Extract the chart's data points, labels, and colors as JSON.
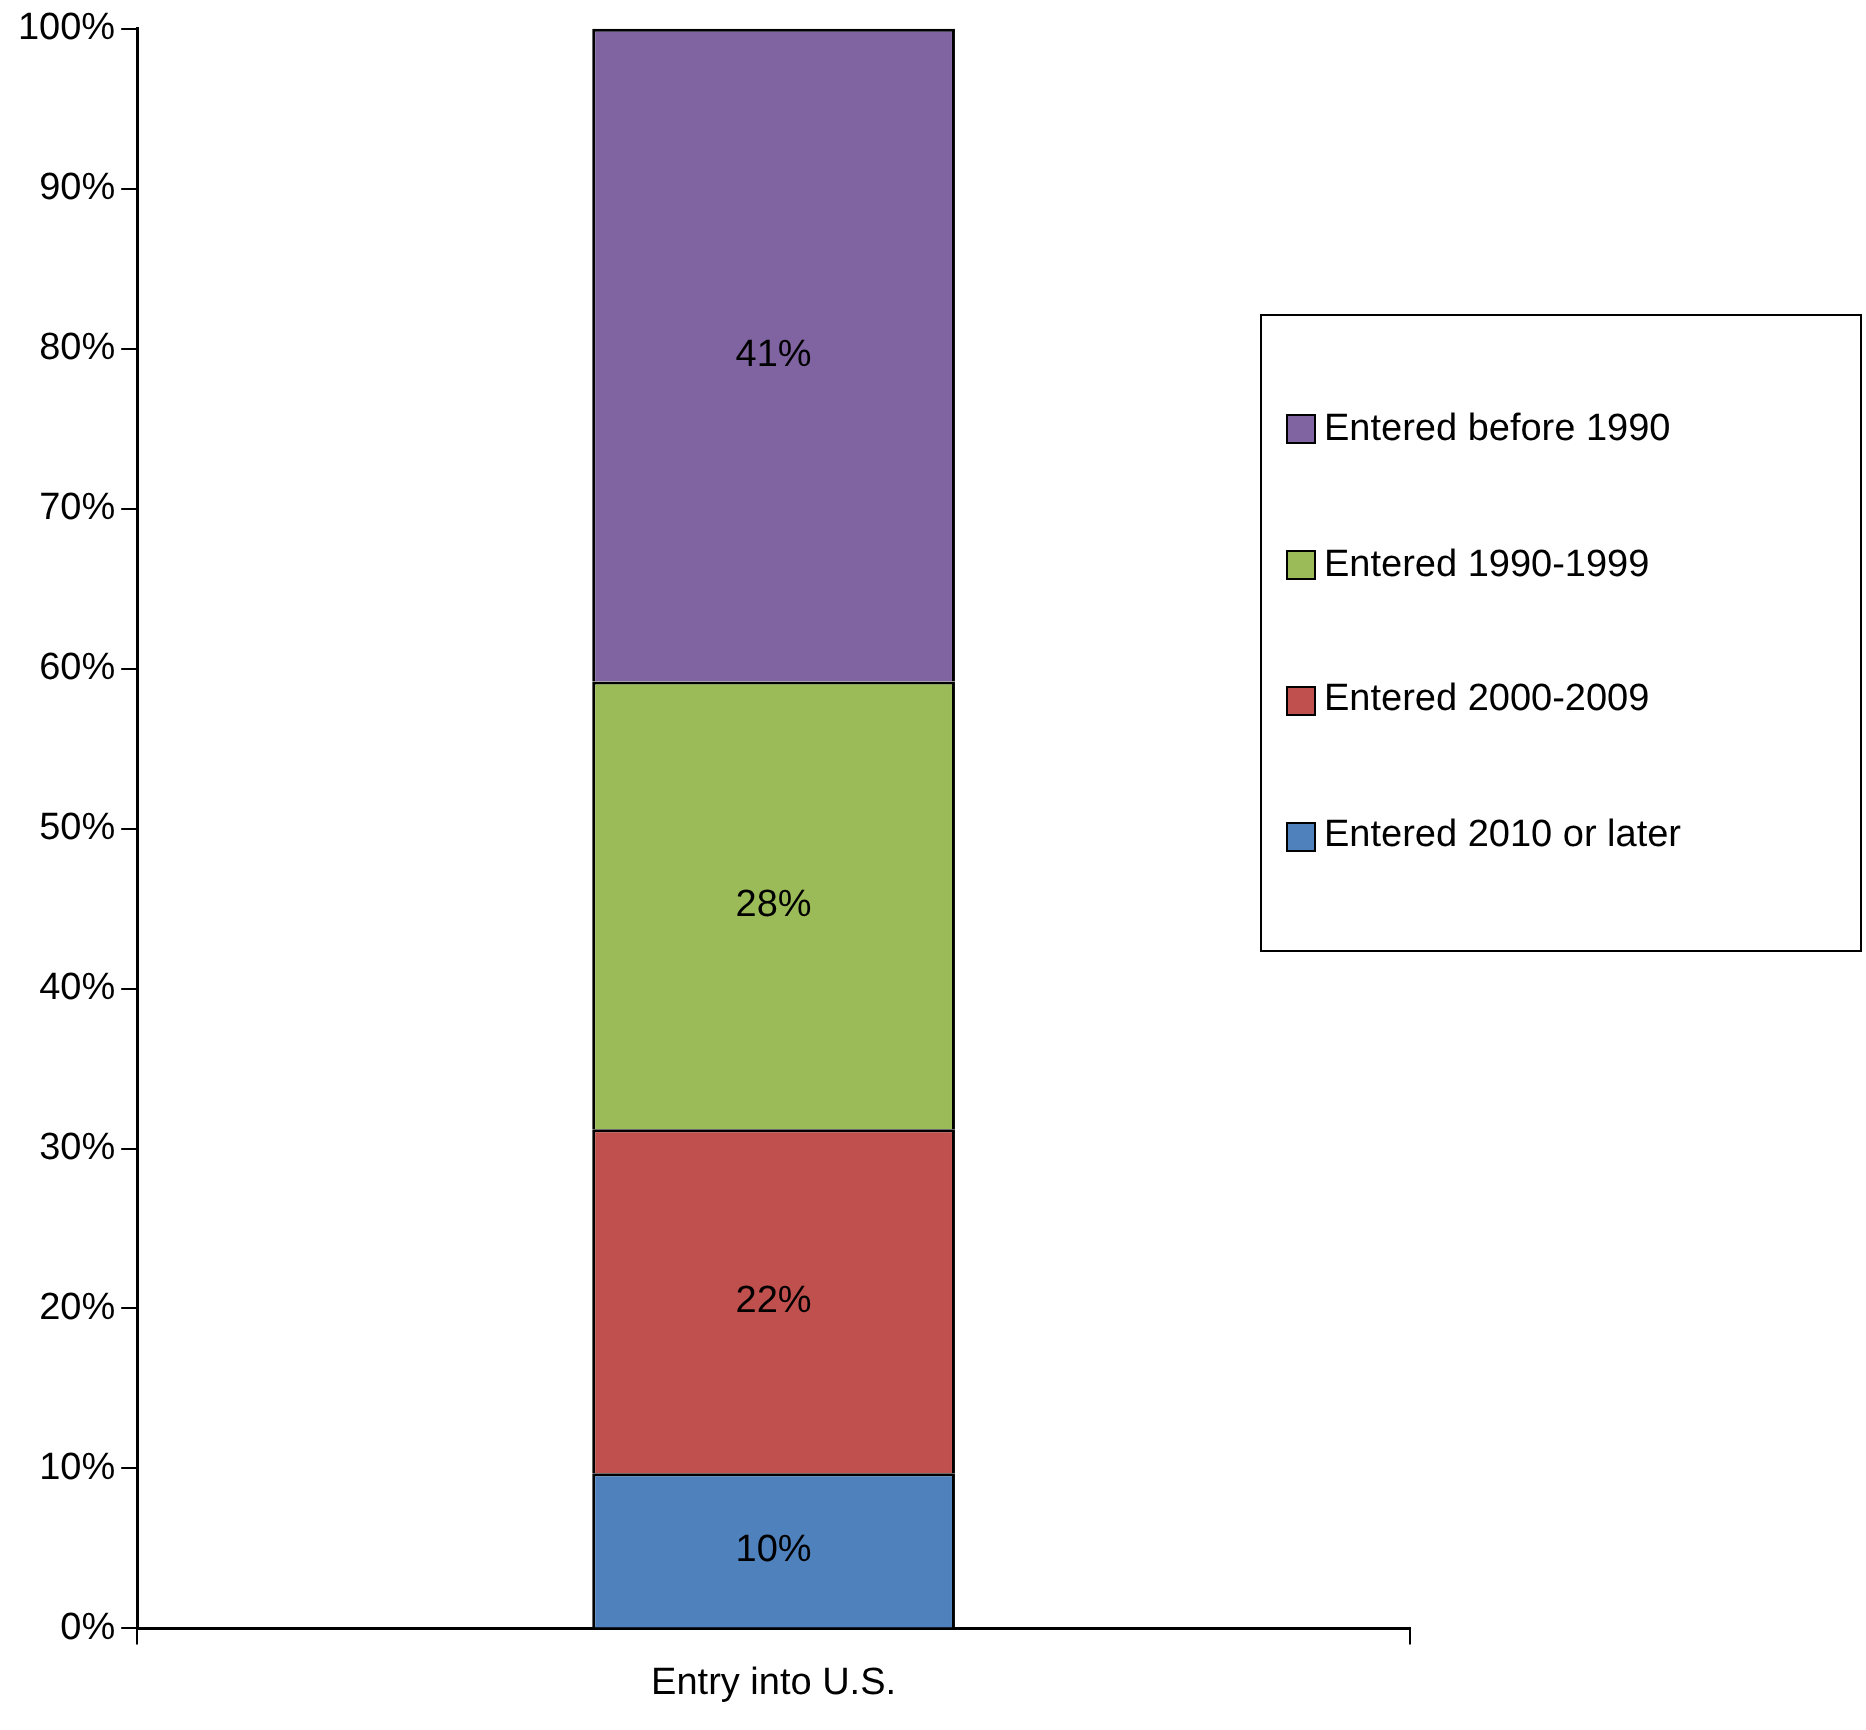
{
  "chart_data": {
    "type": "bar",
    "stacked": true,
    "categories": [
      "Entry into U.S."
    ],
    "series": [
      {
        "name": "Entered 2010 or later",
        "color": "#4f81bd",
        "values": [
          9.7
        ],
        "value_labels": [
          "10%"
        ]
      },
      {
        "name": "Entered 2000-2009",
        "color": "#c0504d",
        "values": [
          21.5
        ],
        "value_labels": [
          "22%"
        ]
      },
      {
        "name": "Entered 1990-1999",
        "color": "#9bbb59",
        "values": [
          28.0
        ],
        "value_labels": [
          "28%"
        ]
      },
      {
        "name": "Entered before 1990",
        "color": "#8064a2",
        "values": [
          40.8
        ],
        "value_labels": [
          "41%"
        ]
      }
    ],
    "ylim": [
      0,
      100
    ],
    "yticks": [
      {
        "value": 0,
        "label": "0%"
      },
      {
        "value": 10,
        "label": "10%"
      },
      {
        "value": 20,
        "label": "20%"
      },
      {
        "value": 30,
        "label": "30%"
      },
      {
        "value": 40,
        "label": "40%"
      },
      {
        "value": 50,
        "label": "50%"
      },
      {
        "value": 60,
        "label": "60%"
      },
      {
        "value": 70,
        "label": "70%"
      },
      {
        "value": 80,
        "label": "80%"
      },
      {
        "value": 90,
        "label": "90%"
      },
      {
        "value": 100,
        "label": "100%"
      }
    ],
    "grid": false,
    "legend": "right"
  }
}
